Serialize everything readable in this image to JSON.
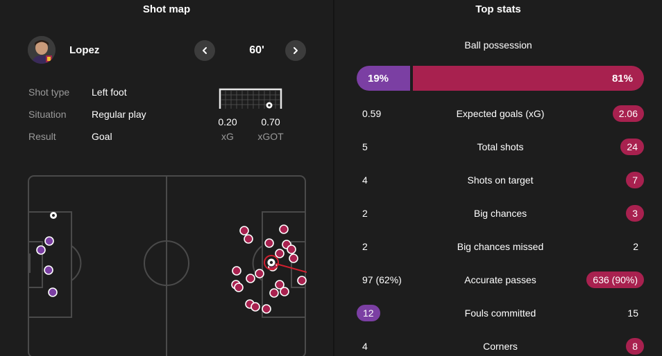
{
  "shot_map": {
    "title": "Shot map",
    "player": {
      "name": "Lopez",
      "minute": "60'"
    },
    "details": [
      {
        "label": "Shot type",
        "value": "Left foot"
      },
      {
        "label": "Situation",
        "value": "Regular play"
      },
      {
        "label": "Result",
        "value": "Goal"
      }
    ],
    "xg": {
      "value": "0.20",
      "label": "xG"
    },
    "xgot": {
      "value": "0.70",
      "label": "xGOT"
    },
    "colors": {
      "home": "#7b3fa3",
      "away": "#a8214f",
      "pitch_lines": "#4a4a4a"
    }
  },
  "top_stats": {
    "title": "Top stats",
    "possession": {
      "label": "Ball possession",
      "home": "19%",
      "away": "81%",
      "home_fraction": 0.19
    },
    "rows": [
      {
        "label": "Expected goals (xG)",
        "home": "0.59",
        "away": "2.06",
        "highlight": "away"
      },
      {
        "label": "Total shots",
        "home": "5",
        "away": "24",
        "highlight": "away"
      },
      {
        "label": "Shots on target",
        "home": "4",
        "away": "7",
        "highlight": "away"
      },
      {
        "label": "Big chances",
        "home": "2",
        "away": "3",
        "highlight": "away"
      },
      {
        "label": "Big chances missed",
        "home": "2",
        "away": "2",
        "highlight": "none"
      },
      {
        "label": "Accurate passes",
        "home": "97 (62%)",
        "away": "636 (90%)",
        "highlight": "away"
      },
      {
        "label": "Fouls committed",
        "home": "12",
        "away": "15",
        "highlight": "home"
      },
      {
        "label": "Corners",
        "home": "4",
        "away": "8",
        "highlight": "away"
      }
    ]
  }
}
